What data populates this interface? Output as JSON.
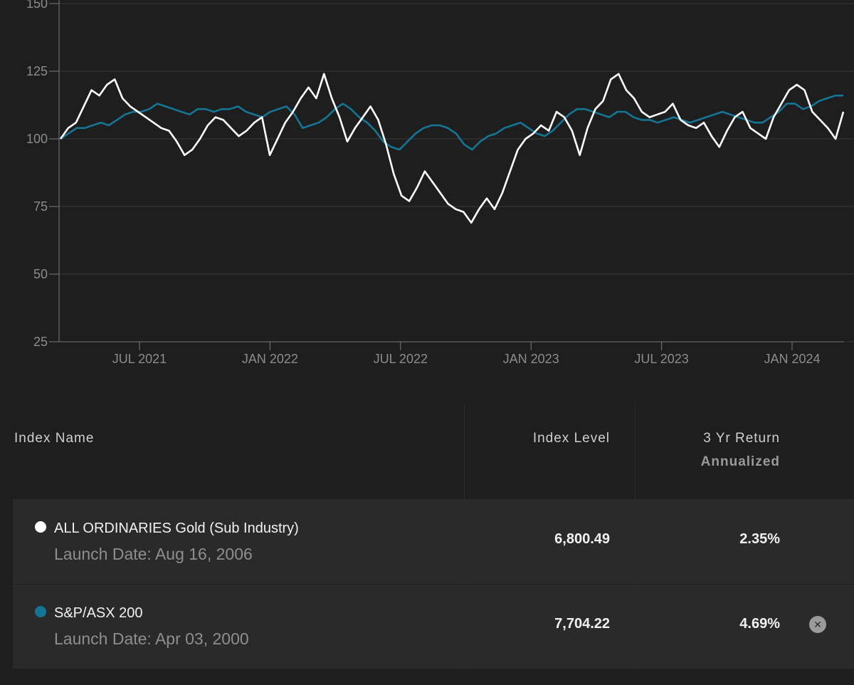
{
  "chart_data": {
    "type": "line",
    "y_ticks": [
      "150",
      "125",
      "100",
      "75",
      "50",
      "25"
    ],
    "ylim": [
      25,
      150
    ],
    "x_ticks": [
      "JUL 2021",
      "JAN 2022",
      "JUL 2022",
      "JAN 2023",
      "JUL 2023",
      "JAN 2024"
    ],
    "grid": true,
    "series": [
      {
        "name": "S&P/ASX 200",
        "color": "#147595",
        "values": [
          100,
          102,
          104,
          104,
          105,
          106,
          105,
          107,
          109,
          110,
          110,
          111,
          113,
          112,
          111,
          110,
          109,
          111,
          111,
          110,
          111,
          111,
          112,
          110,
          109,
          108,
          110,
          111,
          112,
          109,
          104,
          105,
          106,
          108,
          111,
          113,
          111,
          108,
          106,
          103,
          99,
          97,
          96,
          99,
          102,
          104,
          105,
          105,
          104,
          102,
          98,
          96,
          99,
          101,
          102,
          104,
          105,
          106,
          104,
          102,
          101,
          103,
          106,
          109,
          111,
          111,
          110,
          109,
          108,
          110,
          110,
          108,
          107,
          107,
          106,
          107,
          108,
          107,
          106,
          107,
          108,
          109,
          110,
          109,
          108,
          107,
          106,
          106,
          108,
          110,
          113,
          113,
          111,
          112,
          114,
          115,
          116,
          116
        ]
      },
      {
        "name": "ALL ORDINARIES Gold (Sub Industry)",
        "color": "#ffffff",
        "values": [
          100,
          104,
          106,
          112,
          118,
          116,
          120,
          122,
          115,
          112,
          110,
          108,
          106,
          104,
          103,
          99,
          94,
          96,
          100,
          105,
          108,
          107,
          104,
          101,
          103,
          106,
          108,
          94,
          100,
          106,
          110,
          115,
          119,
          115,
          124,
          115,
          108,
          99,
          104,
          108,
          112,
          107,
          98,
          87,
          79,
          77,
          82,
          88,
          84,
          80,
          76,
          74,
          73,
          69,
          74,
          78,
          74,
          80,
          88,
          96,
          100,
          102,
          105,
          103,
          110,
          108,
          103,
          94,
          104,
          111,
          114,
          122,
          124,
          118,
          115,
          110,
          108,
          109,
          110,
          113,
          107,
          105,
          104,
          106,
          101,
          97,
          103,
          108,
          110,
          104,
          102,
          100,
          108,
          113,
          118,
          120,
          118,
          110,
          107,
          104,
          100,
          110
        ]
      }
    ]
  },
  "table": {
    "headers": {
      "name": "Index Name",
      "level": "Index Level",
      "return_top": "3 Yr Return",
      "return_sub": "Annualized"
    },
    "rows": [
      {
        "dot_color": "#ffffff",
        "name": "ALL ORDINARIES Gold (Sub Industry)",
        "launch": "Launch Date: Aug 16, 2006",
        "level": "6,800.49",
        "ret": "2.35%",
        "removable": false
      },
      {
        "dot_color": "#147595",
        "name": "S&P/ASX 200",
        "launch": "Launch Date: Apr 03, 2000",
        "level": "7,704.22",
        "ret": "4.69%",
        "removable": true,
        "remove_icon": "close-icon"
      }
    ]
  }
}
